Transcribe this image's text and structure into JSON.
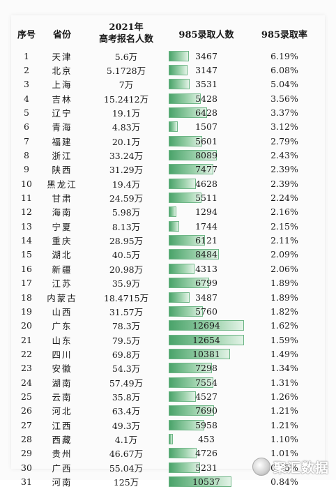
{
  "headers": {
    "rank": "序号",
    "province": "省份",
    "year": "2021年",
    "applicants": "高考报名人数",
    "admitted": "985录取人数",
    "rate": "985录取率"
  },
  "rows": [
    {
      "rank": "1",
      "province": "天津",
      "applicants": "5.6万",
      "admitted": "3467",
      "admitted_num": 3467,
      "rate": "6.19%"
    },
    {
      "rank": "2",
      "province": "北京",
      "applicants": "5.1728万",
      "admitted": "3147",
      "admitted_num": 3147,
      "rate": "6.08%"
    },
    {
      "rank": "3",
      "province": "上海",
      "applicants": "7万",
      "admitted": "3531",
      "admitted_num": 3531,
      "rate": "5.04%"
    },
    {
      "rank": "4",
      "province": "吉林",
      "applicants": "15.2412万",
      "admitted": "5428",
      "admitted_num": 5428,
      "rate": "3.56%"
    },
    {
      "rank": "5",
      "province": "辽宁",
      "applicants": "19.1万",
      "admitted": "6428",
      "admitted_num": 6428,
      "rate": "3.37%"
    },
    {
      "rank": "6",
      "province": "青海",
      "applicants": "4.83万",
      "admitted": "1507",
      "admitted_num": 1507,
      "rate": "3.12%"
    },
    {
      "rank": "7",
      "province": "福建",
      "applicants": "20.1万",
      "admitted": "5601",
      "admitted_num": 5601,
      "rate": "2.79%"
    },
    {
      "rank": "8",
      "province": "浙江",
      "applicants": "33.24万",
      "admitted": "8089",
      "admitted_num": 8089,
      "rate": "2.43%"
    },
    {
      "rank": "9",
      "province": "陕西",
      "applicants": "31.29万",
      "admitted": "7477",
      "admitted_num": 7477,
      "rate": "2.39%"
    },
    {
      "rank": "10",
      "province": "黑龙江",
      "applicants": "19.4万",
      "admitted": "4628",
      "admitted_num": 4628,
      "rate": "2.39%"
    },
    {
      "rank": "11",
      "province": "甘肃",
      "applicants": "24.59万",
      "admitted": "5511",
      "admitted_num": 5511,
      "rate": "2.24%"
    },
    {
      "rank": "12",
      "province": "海南",
      "applicants": "5.98万",
      "admitted": "1294",
      "admitted_num": 1294,
      "rate": "2.16%"
    },
    {
      "rank": "13",
      "province": "宁夏",
      "applicants": "8.13万",
      "admitted": "1744",
      "admitted_num": 1744,
      "rate": "2.15%"
    },
    {
      "rank": "14",
      "province": "重庆",
      "applicants": "28.95万",
      "admitted": "6121",
      "admitted_num": 6121,
      "rate": "2.11%"
    },
    {
      "rank": "15",
      "province": "湖北",
      "applicants": "40.5万",
      "admitted": "8484",
      "admitted_num": 8484,
      "rate": "2.09%"
    },
    {
      "rank": "16",
      "province": "新疆",
      "applicants": "20.98万",
      "admitted": "4313",
      "admitted_num": 4313,
      "rate": "2.06%"
    },
    {
      "rank": "17",
      "province": "江苏",
      "applicants": "35.9万",
      "admitted": "6799",
      "admitted_num": 6799,
      "rate": "1.89%"
    },
    {
      "rank": "18",
      "province": "内蒙古",
      "applicants": "18.4715万",
      "admitted": "3487",
      "admitted_num": 3487,
      "rate": "1.89%"
    },
    {
      "rank": "19",
      "province": "山西",
      "applicants": "31.57万",
      "admitted": "5760",
      "admitted_num": 5760,
      "rate": "1.82%"
    },
    {
      "rank": "20",
      "province": "广东",
      "applicants": "78.3万",
      "admitted": "12694",
      "admitted_num": 12694,
      "rate": "1.62%"
    },
    {
      "rank": "21",
      "province": "山东",
      "applicants": "79.5万",
      "admitted": "12654",
      "admitted_num": 12654,
      "rate": "1.59%"
    },
    {
      "rank": "22",
      "province": "四川",
      "applicants": "69.8万",
      "admitted": "10381",
      "admitted_num": 10381,
      "rate": "1.49%"
    },
    {
      "rank": "23",
      "province": "安徽",
      "applicants": "54.3万",
      "admitted": "7298",
      "admitted_num": 7298,
      "rate": "1.34%"
    },
    {
      "rank": "24",
      "province": "湖南",
      "applicants": "57.49万",
      "admitted": "7554",
      "admitted_num": 7554,
      "rate": "1.31%"
    },
    {
      "rank": "25",
      "province": "云南",
      "applicants": "35.8万",
      "admitted": "4527",
      "admitted_num": 4527,
      "rate": "1.26%"
    },
    {
      "rank": "26",
      "province": "河北",
      "applicants": "63.4万",
      "admitted": "7690",
      "admitted_num": 7690,
      "rate": "1.21%"
    },
    {
      "rank": "27",
      "province": "江西",
      "applicants": "49.3万",
      "admitted": "5958",
      "admitted_num": 5958,
      "rate": "1.21%"
    },
    {
      "rank": "28",
      "province": "西藏",
      "applicants": "4.1万",
      "admitted": "453",
      "admitted_num": 453,
      "rate": "1.10%"
    },
    {
      "rank": "29",
      "province": "贵州",
      "applicants": "46.67万",
      "admitted": "4726",
      "admitted_num": 4726,
      "rate": "1.01%"
    },
    {
      "rank": "30",
      "province": "广西",
      "applicants": "55.04万",
      "admitted": "5231",
      "admitted_num": 5231,
      "rate": "0.95%"
    },
    {
      "rank": "31",
      "province": "河南",
      "applicants": "125万",
      "admitted": "10537",
      "admitted_num": 10537,
      "rate": "0.84%"
    }
  ],
  "bar_max": 12694,
  "watermark": {
    "text": "聚汇数据",
    "icon": "logo-icon"
  }
}
